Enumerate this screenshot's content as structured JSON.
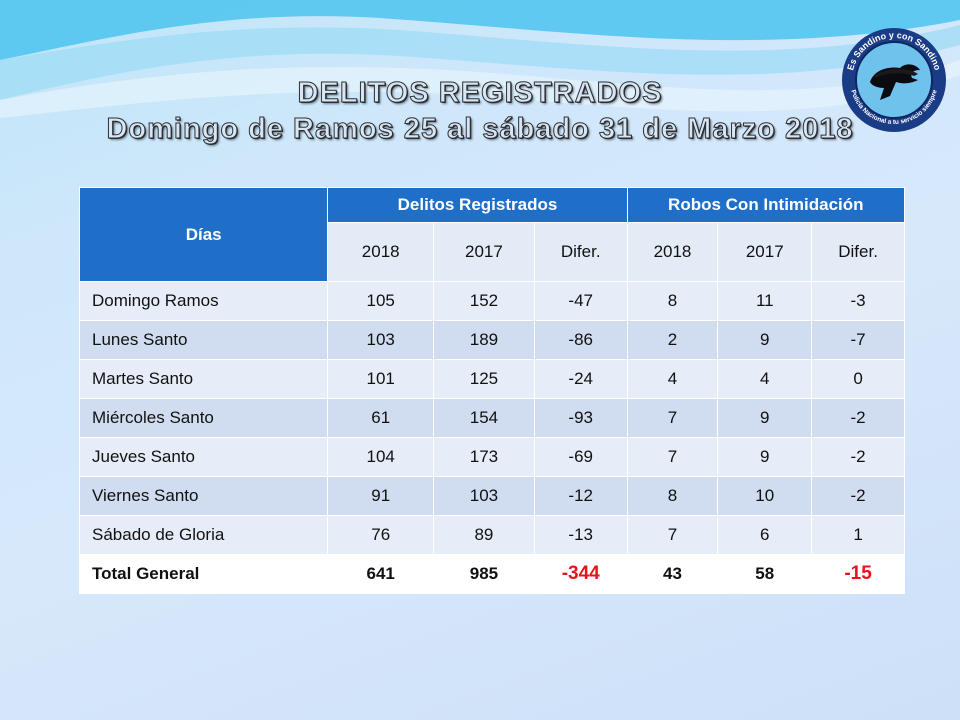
{
  "title": {
    "line1": "DELITOS REGISTRADOS",
    "line2": "Domingo de Ramos 25 al sábado 31 de Marzo 2018"
  },
  "logo": {
    "top_text": "Es Sandino y con Sandino",
    "bottom_text": "Policía Nacional a tu servicio siempre"
  },
  "colors": {
    "header_blue": "#1f6fc9",
    "total_red": "#e8121c"
  },
  "table": {
    "headers": {
      "dias": "Días",
      "group1": "Delitos Registrados",
      "group2": "Robos Con Intimidación",
      "sub": [
        "2018",
        "2017",
        "Difer.",
        "2018",
        "2017",
        "Difer."
      ]
    },
    "rows": [
      {
        "name": "Domingo  Ramos",
        "values": [
          "105",
          "152",
          "-47",
          "8",
          "11",
          "-3"
        ]
      },
      {
        "name": "Lunes Santo",
        "values": [
          "103",
          "189",
          "-86",
          "2",
          "9",
          "-7"
        ]
      },
      {
        "name": "Martes Santo",
        "values": [
          "101",
          "125",
          "-24",
          "4",
          "4",
          "0"
        ]
      },
      {
        "name": "Miércoles Santo",
        "values": [
          "61",
          "154",
          "-93",
          "7",
          "9",
          "-2"
        ]
      },
      {
        "name": "Jueves Santo",
        "values": [
          "104",
          "173",
          "-69",
          "7",
          "9",
          "-2"
        ]
      },
      {
        "name": "Viernes Santo",
        "values": [
          "91",
          "103",
          "-12",
          "8",
          "10",
          "-2"
        ]
      },
      {
        "name": "Sábado de Gloria",
        "values": [
          "76",
          "89",
          "-13",
          "7",
          "6",
          "1"
        ]
      }
    ],
    "total": {
      "name": "Total General",
      "values": [
        "641",
        "985",
        "-344",
        "43",
        "58",
        "-15"
      ]
    }
  }
}
